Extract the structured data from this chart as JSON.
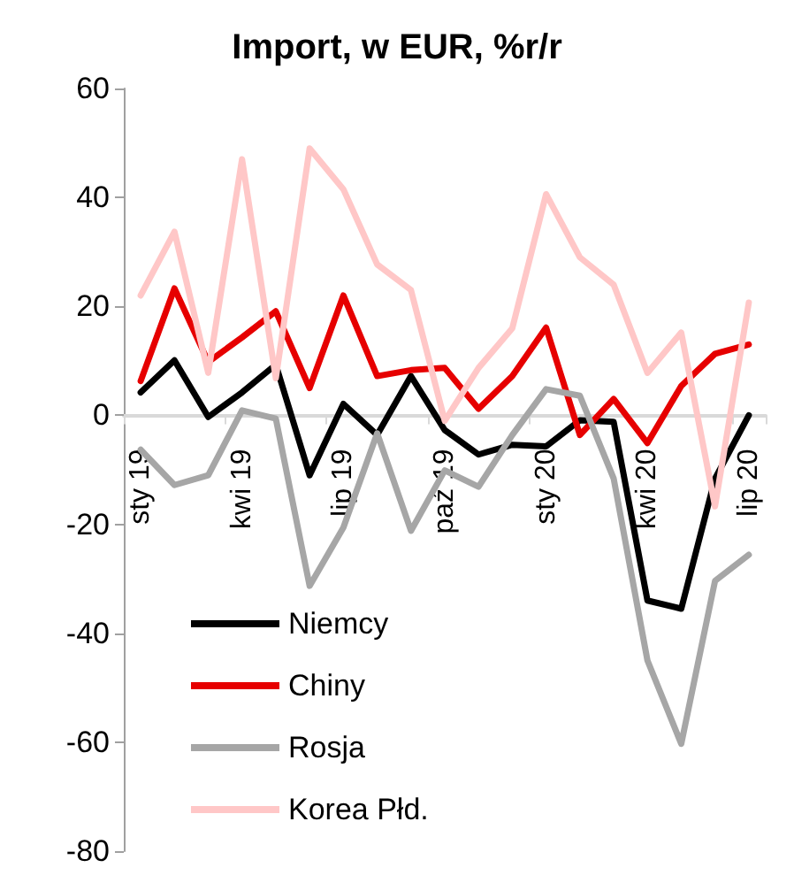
{
  "chart_data": {
    "type": "line",
    "title": "Import, w EUR, %r/r",
    "categories": [
      "sty 19",
      null,
      null,
      "kwi 19",
      null,
      null,
      "lip 19",
      null,
      null,
      "paź 19",
      null,
      null,
      "sty 20",
      null,
      null,
      "kwi 20",
      null,
      null,
      "lip 20"
    ],
    "series": [
      {
        "name": "Niemcy",
        "color": "#000000",
        "values": [
          4.2,
          10.1,
          -0.3,
          4.2,
          9.3,
          -11,
          2.1,
          -3.6,
          7.2,
          -2.7,
          -7.2,
          -5.4,
          -5.7,
          -0.9,
          -1.2,
          -34,
          -35.5,
          -11.6,
          0
        ]
      },
      {
        "name": "Chiny",
        "color": "#e60000",
        "values": [
          6.3,
          23.3,
          9.8,
          14.3,
          19.1,
          5,
          22,
          7.2,
          8.3,
          8.7,
          1.2,
          7.2,
          16.1,
          -3.6,
          3,
          -5.1,
          5.4,
          11.3,
          13
        ]
      },
      {
        "name": "Rosja",
        "color": "#a6a6a6",
        "values": [
          -6.3,
          -12.8,
          -11,
          0.9,
          -0.6,
          -31.3,
          -20.6,
          -3.3,
          -21.2,
          -10.1,
          -13.1,
          -3.6,
          4.8,
          3.6,
          -11.6,
          -45,
          -60.3,
          -30.4,
          -25.6
        ]
      },
      {
        "name": "Korea Płd.",
        "color": "#ffc7c7",
        "values": [
          22,
          33.7,
          7.8,
          47,
          6.8,
          49,
          41.5,
          27.7,
          23,
          -1,
          8.7,
          16,
          40.6,
          29,
          24,
          7.8,
          15.2,
          -16.7,
          20.7
        ]
      }
    ],
    "ylim": [
      -80,
      60
    ],
    "yticks": [
      -80,
      -60,
      -40,
      -20,
      0,
      20,
      40,
      60
    ],
    "grid": false,
    "legend": "bottom left",
    "marker": "none",
    "line_style": "solid"
  }
}
